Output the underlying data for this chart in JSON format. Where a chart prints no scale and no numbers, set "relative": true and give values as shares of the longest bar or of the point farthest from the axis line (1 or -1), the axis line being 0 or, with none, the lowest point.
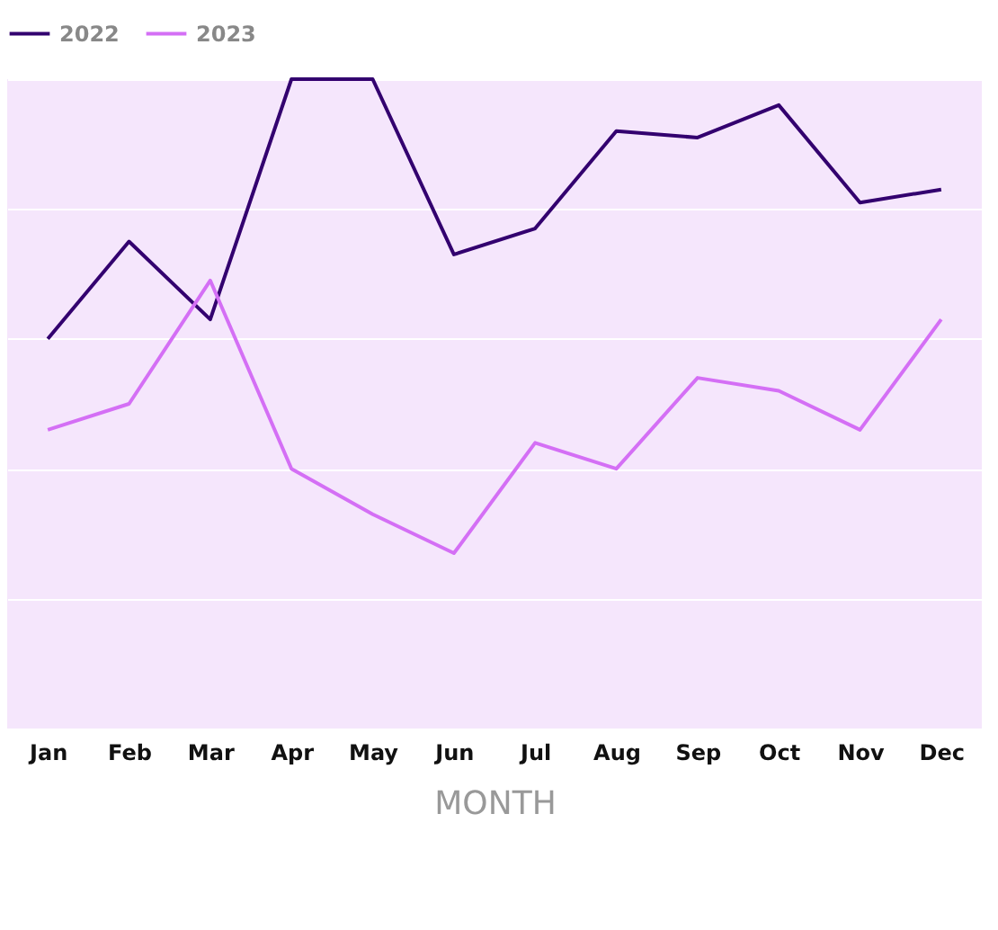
{
  "chart_data": {
    "type": "line",
    "relative": true,
    "xlabel": "MONTH",
    "categories": [
      "Jan",
      "Feb",
      "Mar",
      "Apr",
      "May",
      "Jun",
      "Jul",
      "Aug",
      "Sep",
      "Oct",
      "Nov",
      "Dec"
    ],
    "series": [
      {
        "name": "2022",
        "color": "#33006f",
        "values": [
          0.6,
          0.75,
          0.63,
          1,
          1,
          0.73,
          0.77,
          0.92,
          0.91,
          0.96,
          0.81,
          0.83
        ]
      },
      {
        "name": "2023",
        "color": "#d46ff5",
        "values": [
          0.46,
          0.5,
          0.69,
          0.4,
          0.33,
          0.27,
          0.44,
          0.4,
          0.54,
          0.52,
          0.46,
          0.63
        ]
      }
    ],
    "grid": "y",
    "legend": "top",
    "marker": "none",
    "line_style": "solid"
  }
}
